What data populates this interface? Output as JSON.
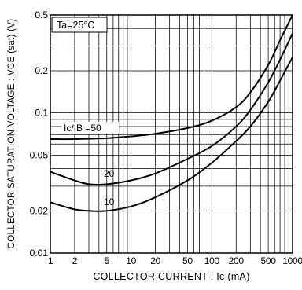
{
  "chart_data": {
    "type": "line",
    "title": "",
    "xlabel": "COLLECTOR  CURRENT : Ic (mA)",
    "ylabel": "COLLECTOR  SATURATION  VOLTAGE : VCE (sat) (V)",
    "x_scale": "log",
    "y_scale": "log",
    "xlim": [
      1,
      1000
    ],
    "ylim": [
      0.01,
      0.5
    ],
    "x_ticks": [
      1,
      2,
      5,
      10,
      20,
      50,
      100,
      200,
      500,
      1000
    ],
    "x_tick_labels": [
      "1",
      "2",
      "5",
      "10",
      "20",
      "50",
      "100",
      "200",
      "500",
      "1000"
    ],
    "y_ticks": [
      0.01,
      0.02,
      0.05,
      0.1,
      0.2,
      0.5
    ],
    "y_tick_labels": [
      "0.01",
      "0.02",
      "0.05",
      "0.1",
      "0.2",
      "0.5"
    ],
    "grid": true,
    "annotations": [
      "Ta=25°C"
    ],
    "series": [
      {
        "name": "Ic/IB =50",
        "x": [
          1,
          2,
          5,
          10,
          20,
          50,
          100,
          200,
          300,
          500,
          700,
          1000
        ],
        "y": [
          0.065,
          0.065,
          0.066,
          0.068,
          0.071,
          0.078,
          0.088,
          0.11,
          0.14,
          0.22,
          0.33,
          0.5
        ]
      },
      {
        "name": "20",
        "x": [
          1,
          2,
          3,
          5,
          10,
          20,
          50,
          100,
          200,
          300,
          500,
          700,
          1000
        ],
        "y": [
          0.038,
          0.033,
          0.031,
          0.031,
          0.033,
          0.037,
          0.047,
          0.058,
          0.08,
          0.105,
          0.165,
          0.24,
          0.37
        ]
      },
      {
        "name": "10",
        "x": [
          1,
          2,
          3,
          5,
          10,
          20,
          50,
          100,
          200,
          300,
          500,
          700,
          1000
        ],
        "y": [
          0.023,
          0.0205,
          0.02,
          0.02,
          0.0215,
          0.025,
          0.033,
          0.044,
          0.063,
          0.08,
          0.12,
          0.17,
          0.25
        ]
      }
    ]
  }
}
